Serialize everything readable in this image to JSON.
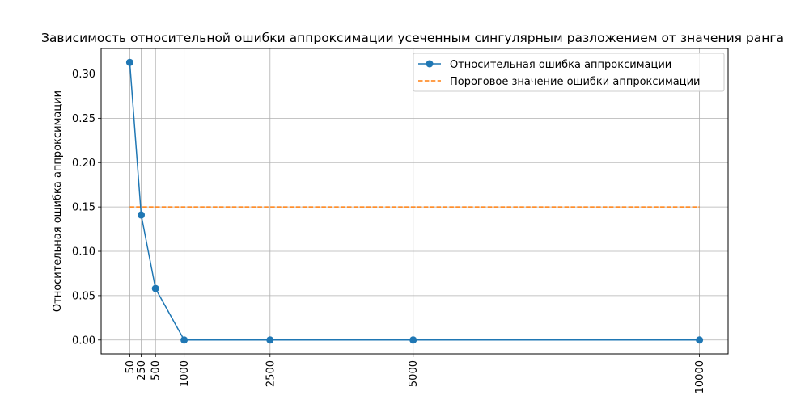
{
  "chart_data": {
    "type": "line",
    "title": "Зависимость относительной ошибки аппроксимации усеченным сингулярным разложением от значения ранга",
    "xlabel": "",
    "ylabel": "Относительная ошибка аппроксимации",
    "x": [
      50,
      250,
      500,
      1000,
      2500,
      5000,
      10000
    ],
    "xticks": [
      "50",
      "250",
      "500",
      "1000",
      "2500",
      "5000",
      "10000"
    ],
    "xlim": [
      -450,
      10500
    ],
    "ylim": [
      -0.0157,
      0.3287
    ],
    "yticks": [
      "0.00",
      "0.05",
      "0.10",
      "0.15",
      "0.20",
      "0.25",
      "0.30"
    ],
    "grid": true,
    "legend_position": "upper right",
    "series": [
      {
        "name": "Относительная ошибка аппроксимации",
        "style": "solid-marker",
        "color": "#1f77b4",
        "values": [
          0.313,
          0.141,
          0.058,
          0.0,
          0.0,
          0.0,
          0.0
        ]
      },
      {
        "name": "Пороговое значение ошибки аппроксимации",
        "style": "dashed",
        "color": "#ff7f0e",
        "values": [
          0.15,
          0.15,
          0.15,
          0.15,
          0.15,
          0.15,
          0.15
        ]
      }
    ]
  }
}
